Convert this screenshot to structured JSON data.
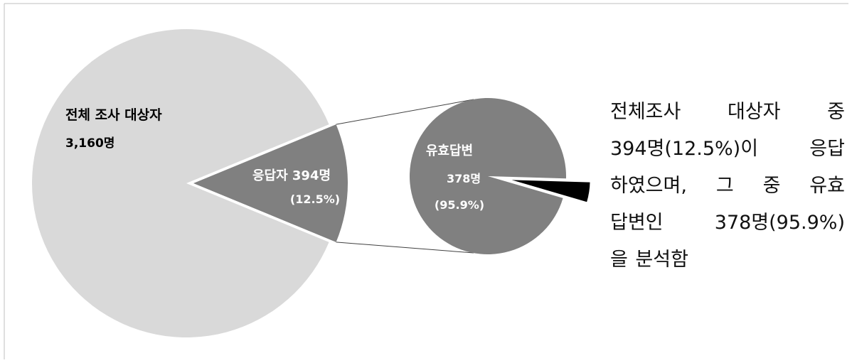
{
  "chart_data": {
    "type": "pie",
    "subtype": "pie-of-pie",
    "primary_pie": {
      "slices": [
        {
          "label_line1": "전체 조사 대상자",
          "label_line2": "3,160명",
          "value": 2766,
          "color": "#d9d9d9"
        },
        {
          "label_line1": "응답자 394명",
          "label_line2": "(12.5%)",
          "value": 394,
          "percent": 12.5,
          "color": "#808080"
        }
      ],
      "total": 3160
    },
    "secondary_pie": {
      "slices": [
        {
          "label_line1": "유효답변",
          "label_line2": "378명",
          "label_line3": "(95.9%)",
          "value": 378,
          "percent": 95.9,
          "color": "#808080"
        },
        {
          "label": "",
          "value": 16,
          "percent": 4.1,
          "color": "#000000"
        }
      ],
      "total": 394
    }
  },
  "note": {
    "lines": [
      "전체조사 대상자 중",
      "394명(12.5%)이 응답",
      "하였으며, 그 중 유효",
      "답변인 378명(95.9%)",
      "을 분석함"
    ]
  },
  "colors": {
    "frame": "#bfbfbf",
    "connector": "#404040",
    "label_dark": "#000000",
    "label_light": "#ffffff"
  }
}
